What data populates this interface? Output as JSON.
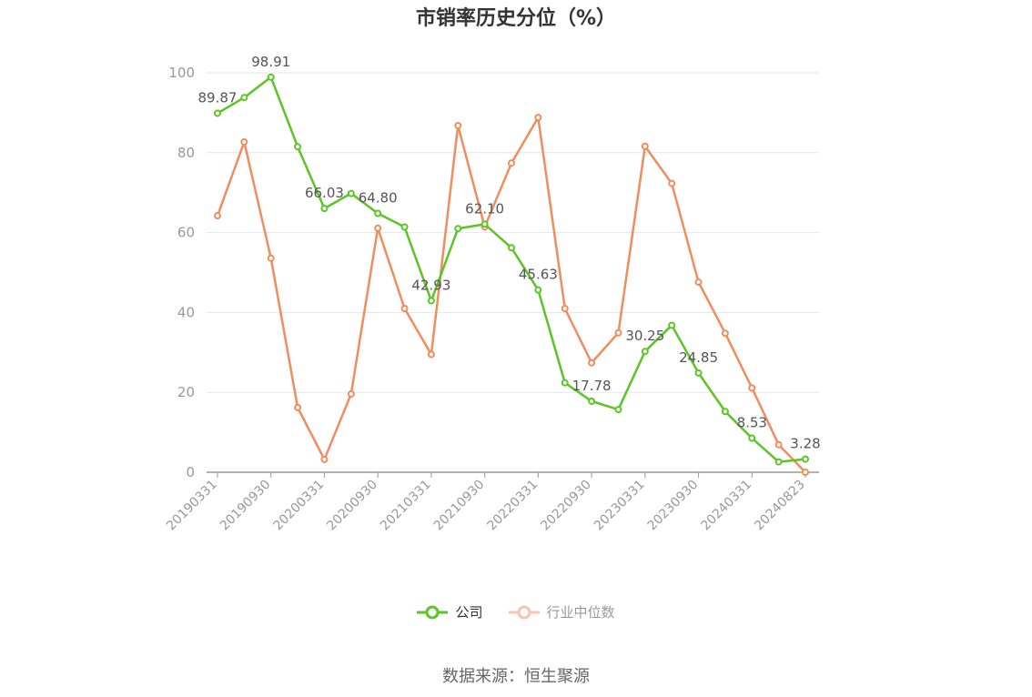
{
  "chart_data": {
    "type": "line",
    "title": "市销率历史分位（%）",
    "x": [
      "20190331",
      "20190630",
      "20190930",
      "20191231",
      "20200331",
      "20200630",
      "20200930",
      "20201231",
      "20210331",
      "20210630",
      "20210930",
      "20211231",
      "20220331",
      "20220630",
      "20220930",
      "20221231",
      "20230331",
      "20230630",
      "20230930",
      "20231231",
      "20240331",
      "20240630",
      "20240823"
    ],
    "x_tick_labels": [
      "20190331",
      "20190930",
      "20200331",
      "20200930",
      "20210331",
      "20210930",
      "20220331",
      "20220930",
      "20230331",
      "20230930",
      "20240331",
      "20240823"
    ],
    "ylim": [
      0,
      100
    ],
    "yticks": [
      0,
      20,
      40,
      60,
      80,
      100
    ],
    "grid": true,
    "legend_position": "bottom",
    "series": [
      {
        "name": "公司",
        "color": "#5ac524",
        "values": [
          89.87,
          93.8,
          98.91,
          81.5,
          66.03,
          69.8,
          64.8,
          61.4,
          42.93,
          61.0,
          62.1,
          56.2,
          45.63,
          22.4,
          17.78,
          15.7,
          30.25,
          36.8,
          24.85,
          15.2,
          8.53,
          2.6,
          3.28
        ],
        "data_labels": {
          "0": "89.87",
          "2": "98.91",
          "4": "66.03",
          "6": "64.80",
          "8": "42.93",
          "10": "62.10",
          "12": "45.63",
          "14": "17.78",
          "16": "30.25",
          "18": "24.85",
          "20": "8.53",
          "22": "3.28"
        }
      },
      {
        "name": "行业中位数",
        "color": "#f28c5c",
        "values": [
          64.2,
          82.7,
          53.6,
          16.2,
          3.2,
          19.6,
          61.1,
          41.0,
          29.5,
          86.8,
          61.4,
          77.4,
          88.8,
          41.0,
          27.4,
          34.9,
          81.6,
          72.3,
          47.6,
          34.8,
          21.1,
          6.9,
          0.0
        ]
      }
    ]
  },
  "legend": {
    "company": "公司",
    "industry": "行业中位数"
  },
  "source": "数据来源：恒生聚源"
}
